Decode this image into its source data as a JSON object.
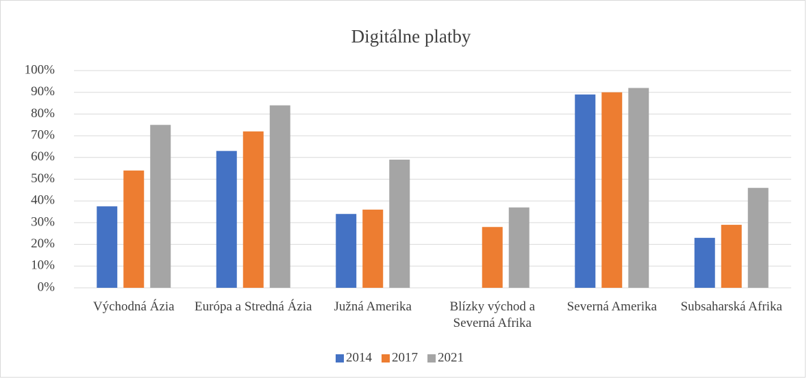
{
  "chart_data": {
    "type": "bar",
    "title": "Digitálne platby",
    "categories": [
      "Východná Ázia",
      "Európa a Stredná Ázia",
      "Južná Amerika",
      "Blízky východ a Severná Afrika",
      "Severná Amerika",
      "Subsaharská Afrika"
    ],
    "series": [
      {
        "name": "2014",
        "color": "#4472c4",
        "values": [
          37.5,
          63,
          34,
          null,
          89,
          23
        ]
      },
      {
        "name": "2017",
        "color": "#ed7d31",
        "values": [
          54,
          72,
          36,
          28,
          90,
          29
        ]
      },
      {
        "name": "2021",
        "color": "#a5a5a5",
        "values": [
          75,
          84,
          59,
          37,
          92,
          46
        ]
      }
    ],
    "ylim": [
      0,
      100
    ],
    "yticks": [
      {
        "value": 0,
        "label": "0%"
      },
      {
        "value": 10,
        "label": "10%"
      },
      {
        "value": 20,
        "label": "20%"
      },
      {
        "value": 30,
        "label": "30%"
      },
      {
        "value": 40,
        "label": "40%"
      },
      {
        "value": 50,
        "label": "50%"
      },
      {
        "value": 60,
        "label": "60%"
      },
      {
        "value": 70,
        "label": "70%"
      },
      {
        "value": 80,
        "label": "80%"
      },
      {
        "value": 90,
        "label": "90%"
      },
      {
        "value": 100,
        "label": "100%"
      }
    ],
    "grid": true,
    "legend": "bottom"
  }
}
